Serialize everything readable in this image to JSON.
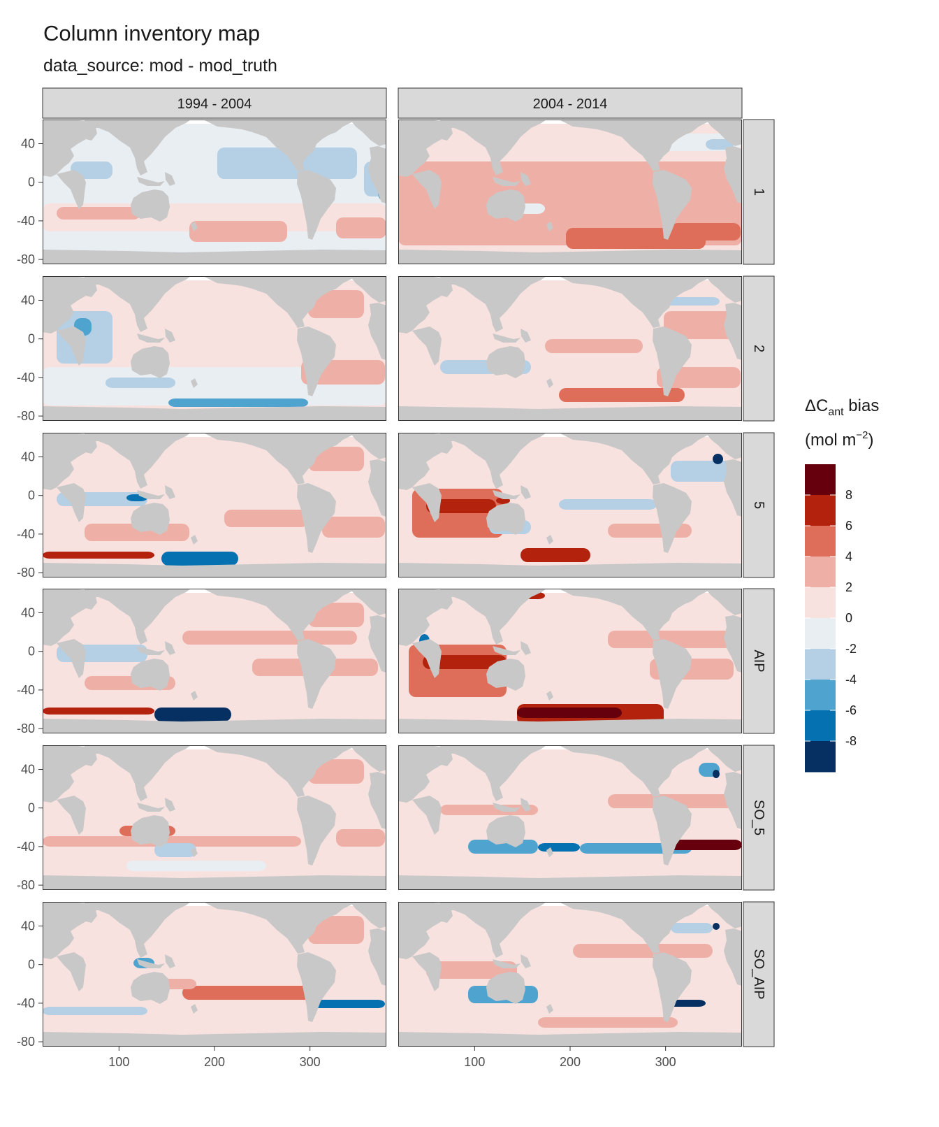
{
  "title": "Column inventory map",
  "subtitle": "data_source: mod - mod_truth",
  "columns": [
    "1994 - 2004",
    "2004 - 2014"
  ],
  "rows": [
    "1",
    "2",
    "5",
    "AIP",
    "SO_5",
    "SO_AIP"
  ],
  "y_ticks": [
    "40",
    "0",
    "-40",
    "-80"
  ],
  "x_ticks": [
    "100",
    "200",
    "300"
  ],
  "legend": {
    "title_main": "ΔC",
    "title_sub": "ant",
    "title_rest": " bias",
    "unit_open": "(mol m",
    "unit_sup": "−2",
    "unit_close": ")",
    "labels": [
      "8",
      "6",
      "4",
      "2",
      "0",
      "-2",
      "-4",
      "-6",
      "-8"
    ],
    "colors": [
      "#67000d",
      "#b2220d",
      "#de6e5a",
      "#eeb0a6",
      "#f8e2df",
      "#e9eef3",
      "#b5d0e5",
      "#4fa4cf",
      "#0571b0",
      "#053061"
    ]
  },
  "colors": {
    "land": "#c8c8c8",
    "strip": "#d9d9d9"
  },
  "chart_data": {
    "type": "map",
    "facet_rows": [
      "1",
      "2",
      "5",
      "AIP",
      "SO_5",
      "SO_AIP"
    ],
    "facet_cols": [
      "1994 - 2004",
      "2004 - 2014"
    ],
    "xlim": [
      20,
      380
    ],
    "ylim": [
      -85,
      65
    ],
    "x_ticks": [
      100,
      200,
      300
    ],
    "y_ticks": [
      40,
      0,
      -40,
      -80
    ],
    "color_breaks": [
      8,
      6,
      4,
      2,
      0,
      -2,
      -4,
      -6,
      -8
    ]
  }
}
